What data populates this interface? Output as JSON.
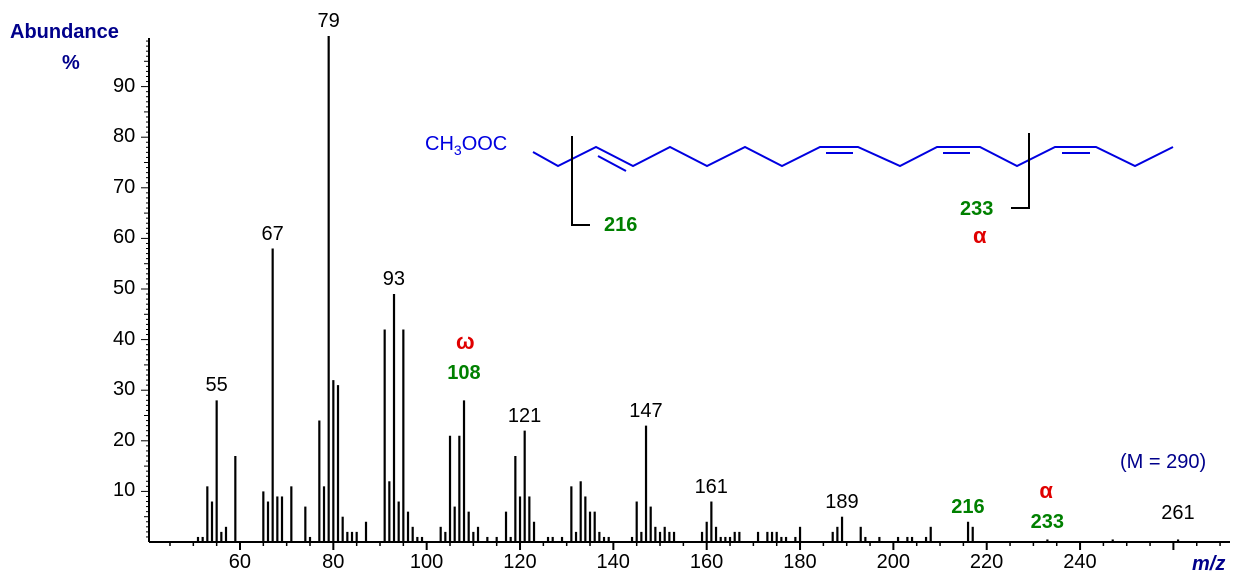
{
  "chart_data": {
    "type": "bar",
    "title": "",
    "xlabel": "m/z",
    "ylabel": "Abundance %",
    "xlim": [
      43,
      285
    ],
    "ylim": [
      0,
      100
    ],
    "x_ticks": [
      60,
      80,
      100,
      120,
      140,
      160,
      180,
      200,
      220,
      240
    ],
    "y_ticks": [
      10,
      20,
      30,
      40,
      50,
      60,
      70,
      80,
      90
    ],
    "grid": false,
    "legend": null,
    "annotation_molecular": "(M = 290)",
    "peaks": [
      {
        "mz": 51,
        "abundance": 1
      },
      {
        "mz": 52,
        "abundance": 1
      },
      {
        "mz": 53,
        "abundance": 11
      },
      {
        "mz": 54,
        "abundance": 8
      },
      {
        "mz": 55,
        "abundance": 28
      },
      {
        "mz": 56,
        "abundance": 2
      },
      {
        "mz": 57,
        "abundance": 3
      },
      {
        "mz": 59,
        "abundance": 17
      },
      {
        "mz": 65,
        "abundance": 10
      },
      {
        "mz": 66,
        "abundance": 8
      },
      {
        "mz": 67,
        "abundance": 58
      },
      {
        "mz": 68,
        "abundance": 9
      },
      {
        "mz": 69,
        "abundance": 9
      },
      {
        "mz": 71,
        "abundance": 11
      },
      {
        "mz": 74,
        "abundance": 7
      },
      {
        "mz": 75,
        "abundance": 1
      },
      {
        "mz": 77,
        "abundance": 24
      },
      {
        "mz": 78,
        "abundance": 11
      },
      {
        "mz": 79,
        "abundance": 100
      },
      {
        "mz": 80,
        "abundance": 32
      },
      {
        "mz": 81,
        "abundance": 31
      },
      {
        "mz": 82,
        "abundance": 5
      },
      {
        "mz": 83,
        "abundance": 2
      },
      {
        "mz": 84,
        "abundance": 2
      },
      {
        "mz": 85,
        "abundance": 2
      },
      {
        "mz": 87,
        "abundance": 4
      },
      {
        "mz": 91,
        "abundance": 42
      },
      {
        "mz": 92,
        "abundance": 12
      },
      {
        "mz": 93,
        "abundance": 49
      },
      {
        "mz": 94,
        "abundance": 8
      },
      {
        "mz": 95,
        "abundance": 42
      },
      {
        "mz": 96,
        "abundance": 6
      },
      {
        "mz": 97,
        "abundance": 3
      },
      {
        "mz": 98,
        "abundance": 1
      },
      {
        "mz": 99,
        "abundance": 1
      },
      {
        "mz": 103,
        "abundance": 3
      },
      {
        "mz": 104,
        "abundance": 2
      },
      {
        "mz": 105,
        "abundance": 21
      },
      {
        "mz": 106,
        "abundance": 7
      },
      {
        "mz": 107,
        "abundance": 21
      },
      {
        "mz": 108,
        "abundance": 28
      },
      {
        "mz": 109,
        "abundance": 6
      },
      {
        "mz": 110,
        "abundance": 2
      },
      {
        "mz": 111,
        "abundance": 3
      },
      {
        "mz": 113,
        "abundance": 1
      },
      {
        "mz": 115,
        "abundance": 1
      },
      {
        "mz": 117,
        "abundance": 6
      },
      {
        "mz": 118,
        "abundance": 1
      },
      {
        "mz": 119,
        "abundance": 17
      },
      {
        "mz": 120,
        "abundance": 9
      },
      {
        "mz": 121,
        "abundance": 22
      },
      {
        "mz": 122,
        "abundance": 9
      },
      {
        "mz": 123,
        "abundance": 4
      },
      {
        "mz": 126,
        "abundance": 1
      },
      {
        "mz": 127,
        "abundance": 1
      },
      {
        "mz": 129,
        "abundance": 1
      },
      {
        "mz": 131,
        "abundance": 11
      },
      {
        "mz": 132,
        "abundance": 2
      },
      {
        "mz": 133,
        "abundance": 12
      },
      {
        "mz": 134,
        "abundance": 9
      },
      {
        "mz": 135,
        "abundance": 6
      },
      {
        "mz": 136,
        "abundance": 6
      },
      {
        "mz": 137,
        "abundance": 2
      },
      {
        "mz": 138,
        "abundance": 1
      },
      {
        "mz": 139,
        "abundance": 1
      },
      {
        "mz": 144,
        "abundance": 1
      },
      {
        "mz": 145,
        "abundance": 8
      },
      {
        "mz": 146,
        "abundance": 2
      },
      {
        "mz": 147,
        "abundance": 23
      },
      {
        "mz": 148,
        "abundance": 7
      },
      {
        "mz": 149,
        "abundance": 3
      },
      {
        "mz": 150,
        "abundance": 2
      },
      {
        "mz": 151,
        "abundance": 3
      },
      {
        "mz": 152,
        "abundance": 2
      },
      {
        "mz": 153,
        "abundance": 2
      },
      {
        "mz": 159,
        "abundance": 2
      },
      {
        "mz": 160,
        "abundance": 4
      },
      {
        "mz": 161,
        "abundance": 8
      },
      {
        "mz": 162,
        "abundance": 3
      },
      {
        "mz": 163,
        "abundance": 1
      },
      {
        "mz": 164,
        "abundance": 1
      },
      {
        "mz": 165,
        "abundance": 1
      },
      {
        "mz": 166,
        "abundance": 2
      },
      {
        "mz": 167,
        "abundance": 2
      },
      {
        "mz": 171,
        "abundance": 2
      },
      {
        "mz": 173,
        "abundance": 2
      },
      {
        "mz": 174,
        "abundance": 2
      },
      {
        "mz": 175,
        "abundance": 2
      },
      {
        "mz": 176,
        "abundance": 1
      },
      {
        "mz": 177,
        "abundance": 1
      },
      {
        "mz": 179,
        "abundance": 1
      },
      {
        "mz": 180,
        "abundance": 3
      },
      {
        "mz": 187,
        "abundance": 2
      },
      {
        "mz": 188,
        "abundance": 3
      },
      {
        "mz": 189,
        "abundance": 5
      },
      {
        "mz": 193,
        "abundance": 3
      },
      {
        "mz": 194,
        "abundance": 1
      },
      {
        "mz": 197,
        "abundance": 1
      },
      {
        "mz": 201,
        "abundance": 1
      },
      {
        "mz": 203,
        "abundance": 1
      },
      {
        "mz": 204,
        "abundance": 1
      },
      {
        "mz": 207,
        "abundance": 1
      },
      {
        "mz": 208,
        "abundance": 3
      },
      {
        "mz": 216,
        "abundance": 4
      },
      {
        "mz": 217,
        "abundance": 3
      },
      {
        "mz": 233,
        "abundance": 0.5
      },
      {
        "mz": 247,
        "abundance": 0.5
      },
      {
        "mz": 261,
        "abundance": 0.5
      }
    ],
    "peak_labels": [
      {
        "mz": 55,
        "text": "55",
        "style": "black"
      },
      {
        "mz": 67,
        "text": "67",
        "style": "black"
      },
      {
        "mz": 79,
        "text": "79",
        "style": "black"
      },
      {
        "mz": 93,
        "text": "93",
        "style": "black"
      },
      {
        "mz": 108,
        "text": "108",
        "style": "green",
        "marker": "ω"
      },
      {
        "mz": 121,
        "text": "121",
        "style": "black"
      },
      {
        "mz": 147,
        "text": "147",
        "style": "black"
      },
      {
        "mz": 161,
        "text": "161",
        "style": "black"
      },
      {
        "mz": 189,
        "text": "189",
        "style": "black"
      },
      {
        "mz": 216,
        "text": "216",
        "style": "green"
      },
      {
        "mz": 233,
        "text": "233",
        "style": "green",
        "marker": "α"
      },
      {
        "mz": 261,
        "text": "261",
        "style": "black"
      }
    ],
    "structure": {
      "formula_prefix": "CH",
      "formula_sub": "3",
      "formula_suffix": "OOC",
      "fragment_left": "216",
      "fragment_right": "233",
      "fragment_right_marker": "α"
    }
  },
  "labels": {
    "y_title": "Abundance",
    "y_unit": "%",
    "x_title": "m/z",
    "mass_note": "(M = 290)",
    "omega": "ω",
    "alpha": "α"
  },
  "colors": {
    "axis_title": "#00008b",
    "structure": "#0000e0",
    "fragment_green": "#008000",
    "greek_red": "#e00000"
  }
}
